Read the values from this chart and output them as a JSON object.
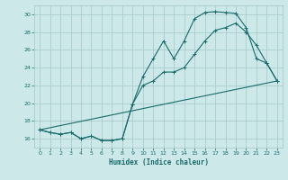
{
  "title": "",
  "xlabel": "Humidex (Indice chaleur)",
  "ylabel": "",
  "bg_color": "#cce8e8",
  "grid_color": "#aacccc",
  "line_color": "#1a6b6b",
  "xlim": [
    -0.5,
    23.5
  ],
  "ylim": [
    15,
    31
  ],
  "yticks": [
    16,
    18,
    20,
    22,
    24,
    26,
    28,
    30
  ],
  "xticks": [
    0,
    1,
    2,
    3,
    4,
    5,
    6,
    7,
    8,
    9,
    10,
    11,
    12,
    13,
    14,
    15,
    16,
    17,
    18,
    19,
    20,
    21,
    22,
    23
  ],
  "line1_x": [
    0,
    1,
    2,
    3,
    4,
    5,
    6,
    7,
    8,
    9,
    10,
    11,
    12,
    13,
    14,
    15,
    16,
    17,
    18,
    19,
    20,
    21,
    22,
    23
  ],
  "line1_y": [
    17.0,
    16.7,
    16.5,
    16.7,
    16.0,
    16.3,
    15.8,
    15.8,
    16.0,
    19.9,
    23.0,
    25.0,
    27.0,
    25.0,
    27.0,
    29.5,
    30.2,
    30.3,
    30.2,
    30.1,
    28.5,
    25.0,
    24.5,
    22.5
  ],
  "line2_x": [
    0,
    1,
    2,
    3,
    4,
    5,
    6,
    7,
    8,
    9,
    10,
    11,
    12,
    13,
    14,
    15,
    16,
    17,
    18,
    19,
    20,
    21,
    22,
    23
  ],
  "line2_y": [
    17.0,
    16.7,
    16.5,
    16.7,
    16.0,
    16.3,
    15.8,
    15.8,
    16.0,
    19.9,
    22.0,
    22.5,
    23.5,
    23.5,
    24.0,
    25.5,
    27.0,
    28.2,
    28.5,
    29.0,
    28.0,
    26.5,
    24.5,
    22.5
  ],
  "line3_x": [
    0,
    23
  ],
  "line3_y": [
    17.0,
    22.5
  ]
}
